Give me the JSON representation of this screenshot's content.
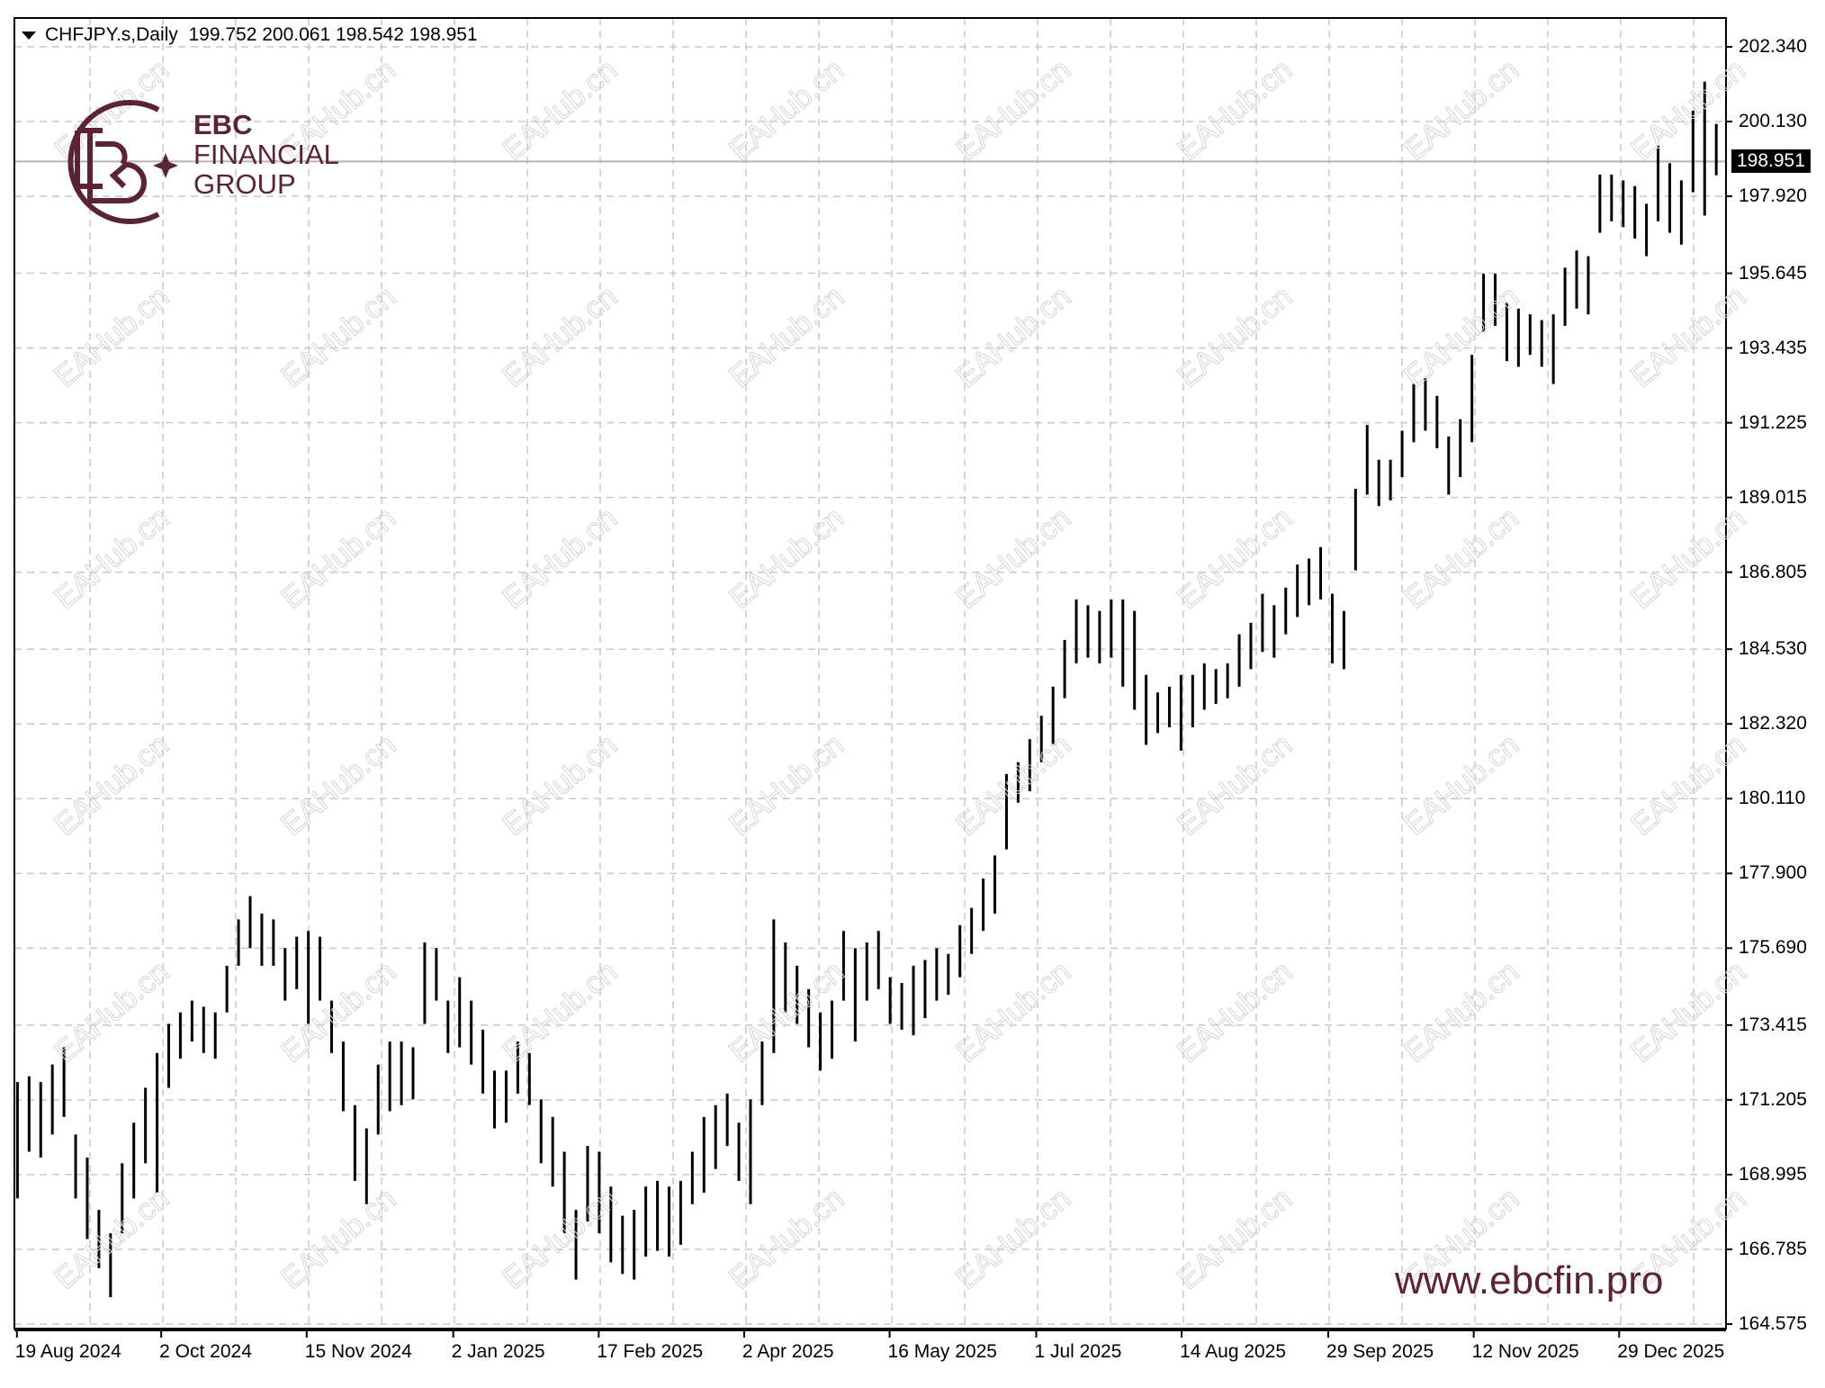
{
  "header": {
    "symbol": "CHFJPY.s,Daily",
    "ohlc": "199.752 200.061 198.542 198.951"
  },
  "logo": {
    "line1": "EBC",
    "line2": "FINANCIAL",
    "line3": "GROUP",
    "color": "#5b2434"
  },
  "website": "www.ebcfin.pro",
  "watermark": "EAHub.cn",
  "current_price_label": "198.951",
  "chart_data": {
    "type": "ohlc-bar",
    "title": "CHFJPY.s,Daily",
    "ylim": [
      164.575,
      202.34
    ],
    "grid": true,
    "current_price": 198.951,
    "y_ticks": [
      "202.340",
      "200.130",
      "197.920",
      "195.645",
      "193.435",
      "191.225",
      "189.015",
      "186.805",
      "184.530",
      "182.320",
      "180.110",
      "177.900",
      "175.690",
      "173.415",
      "171.205",
      "168.995",
      "166.785",
      "164.575"
    ],
    "x_ticks": [
      "19 Aug 2024",
      "2 Oct 2024",
      "15 Nov 2024",
      "2 Jan 2025",
      "17 Feb 2025",
      "2 Apr 2025",
      "16 May 2025",
      "1 Jul 2025",
      "14 Aug 2025",
      "29 Sep 2025",
      "12 Nov 2025",
      "29 Dec 2025"
    ],
    "bars_high_low": [
      [
        171.73,
        168.29
      ],
      [
        171.9,
        169.67
      ],
      [
        171.73,
        169.5
      ],
      [
        172.25,
        170.18
      ],
      [
        172.76,
        170.7
      ],
      [
        170.18,
        168.29
      ],
      [
        169.5,
        167.09
      ],
      [
        167.95,
        166.23
      ],
      [
        167.26,
        165.37
      ],
      [
        169.33,
        167.26
      ],
      [
        170.53,
        168.29
      ],
      [
        171.56,
        169.33
      ],
      [
        172.59,
        168.46
      ],
      [
        173.45,
        171.56
      ],
      [
        173.79,
        172.42
      ],
      [
        174.14,
        172.93
      ],
      [
        173.96,
        172.59
      ],
      [
        173.79,
        172.42
      ],
      [
        175.17,
        173.79
      ],
      [
        176.54,
        175.17
      ],
      [
        177.23,
        175.69
      ],
      [
        176.71,
        175.17
      ],
      [
        176.54,
        175.17
      ],
      [
        175.69,
        174.14
      ],
      [
        176.03,
        174.48
      ],
      [
        176.2,
        173.45
      ],
      [
        176.03,
        174.14
      ],
      [
        174.14,
        172.59
      ],
      [
        172.93,
        170.87
      ],
      [
        171.05,
        168.81
      ],
      [
        170.36,
        168.12
      ],
      [
        172.25,
        170.18
      ],
      [
        172.93,
        170.87
      ],
      [
        172.93,
        171.05
      ],
      [
        172.76,
        171.22
      ],
      [
        175.86,
        173.45
      ],
      [
        175.69,
        174.14
      ],
      [
        174.14,
        172.59
      ],
      [
        174.83,
        172.76
      ],
      [
        174.14,
        172.25
      ],
      [
        173.28,
        171.39
      ],
      [
        172.07,
        170.36
      ],
      [
        172.07,
        170.53
      ],
      [
        172.93,
        171.39
      ],
      [
        172.59,
        171.05
      ],
      [
        171.22,
        169.33
      ],
      [
        170.7,
        168.64
      ],
      [
        169.67,
        167.26
      ],
      [
        167.95,
        165.89
      ],
      [
        169.84,
        167.61
      ],
      [
        169.67,
        167.26
      ],
      [
        168.64,
        166.4
      ],
      [
        167.78,
        166.06
      ],
      [
        167.95,
        165.89
      ],
      [
        168.64,
        166.57
      ],
      [
        168.81,
        166.74
      ],
      [
        168.64,
        166.57
      ],
      [
        168.81,
        166.92
      ],
      [
        169.67,
        168.12
      ],
      [
        170.7,
        168.46
      ],
      [
        171.05,
        169.16
      ],
      [
        171.39,
        169.84
      ],
      [
        170.53,
        168.81
      ],
      [
        171.22,
        168.12
      ],
      [
        172.93,
        171.05
      ],
      [
        176.54,
        172.59
      ],
      [
        175.86,
        173.79
      ],
      [
        175.17,
        173.45
      ],
      [
        174.48,
        172.76
      ],
      [
        173.79,
        172.07
      ],
      [
        174.14,
        172.42
      ],
      [
        176.2,
        174.14
      ],
      [
        175.69,
        172.93
      ],
      [
        175.86,
        174.14
      ],
      [
        176.2,
        174.48
      ],
      [
        174.83,
        173.45
      ],
      [
        174.66,
        173.28
      ],
      [
        175.17,
        173.11
      ],
      [
        175.34,
        173.62
      ],
      [
        175.69,
        174.14
      ],
      [
        175.52,
        174.31
      ],
      [
        176.37,
        174.83
      ],
      [
        176.88,
        175.52
      ],
      [
        177.75,
        176.2
      ],
      [
        178.43,
        176.71
      ],
      [
        180.84,
        178.61
      ],
      [
        181.19,
        179.99
      ],
      [
        181.87,
        180.33
      ],
      [
        182.56,
        181.19
      ],
      [
        183.42,
        181.7
      ],
      [
        184.8,
        183.08
      ],
      [
        186.0,
        184.11
      ],
      [
        185.83,
        184.28
      ],
      [
        185.66,
        184.11
      ],
      [
        186.0,
        184.28
      ],
      [
        186.0,
        183.42
      ],
      [
        185.66,
        182.74
      ],
      [
        183.77,
        181.7
      ],
      [
        183.25,
        182.05
      ],
      [
        183.42,
        182.22
      ],
      [
        183.77,
        181.53
      ],
      [
        183.77,
        182.22
      ],
      [
        184.11,
        182.74
      ],
      [
        183.94,
        182.91
      ],
      [
        184.11,
        183.08
      ],
      [
        184.97,
        183.42
      ],
      [
        185.31,
        183.94
      ],
      [
        186.17,
        184.45
      ],
      [
        185.83,
        184.28
      ],
      [
        186.35,
        184.97
      ],
      [
        187.03,
        185.48
      ],
      [
        187.21,
        185.83
      ],
      [
        187.55,
        186.0
      ],
      [
        186.17,
        184.11
      ],
      [
        185.66,
        183.94
      ],
      [
        189.27,
        186.86
      ],
      [
        191.16,
        189.1
      ],
      [
        190.13,
        188.76
      ],
      [
        190.13,
        188.93
      ],
      [
        190.99,
        189.62
      ],
      [
        192.37,
        190.65
      ],
      [
        192.54,
        190.99
      ],
      [
        192.02,
        190.47
      ],
      [
        190.82,
        189.1
      ],
      [
        191.33,
        189.62
      ],
      [
        193.23,
        190.65
      ],
      [
        195.63,
        193.91
      ],
      [
        195.63,
        194.09
      ],
      [
        194.77,
        193.05
      ],
      [
        194.6,
        192.88
      ],
      [
        194.43,
        193.23
      ],
      [
        194.26,
        192.88
      ],
      [
        194.43,
        192.37
      ],
      [
        195.81,
        194.09
      ],
      [
        196.32,
        194.6
      ],
      [
        196.15,
        194.43
      ],
      [
        198.56,
        196.84
      ],
      [
        198.56,
        197.18
      ],
      [
        198.39,
        197.01
      ],
      [
        198.22,
        196.67
      ],
      [
        197.7,
        196.15
      ],
      [
        199.42,
        197.18
      ],
      [
        198.9,
        196.84
      ],
      [
        198.39,
        196.49
      ],
      [
        200.45,
        198.04
      ],
      [
        201.31,
        197.35
      ],
      [
        200.061,
        198.542
      ]
    ]
  }
}
